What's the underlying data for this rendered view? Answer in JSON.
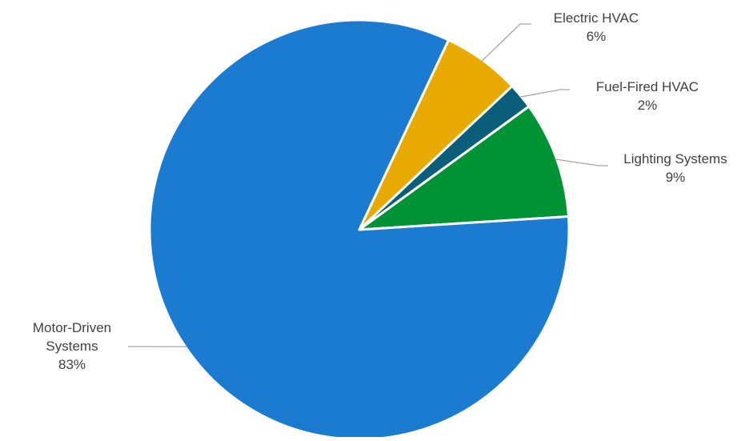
{
  "chart_data": {
    "type": "pie",
    "title": "",
    "slices": [
      {
        "label": "Motor-Driven Systems",
        "value": 83,
        "value_label": "83%",
        "color": "#1a7bd1",
        "label_lines": [
          "Motor-Driven",
          "Systems"
        ]
      },
      {
        "label": "Electric HVAC",
        "value": 6,
        "value_label": "6%",
        "color": "#e8aa00",
        "label_lines": [
          "Electric HVAC"
        ]
      },
      {
        "label": "Fuel-Fired HVAC",
        "value": 2,
        "value_label": "2%",
        "color": "#0b5e79",
        "label_lines": [
          "Fuel-Fired HVAC"
        ]
      },
      {
        "label": "Lighting Systems",
        "value": 9,
        "value_label": "9%",
        "color": "#009336",
        "label_lines": [
          "Lighting Systems"
        ]
      }
    ],
    "legend": "none"
  }
}
